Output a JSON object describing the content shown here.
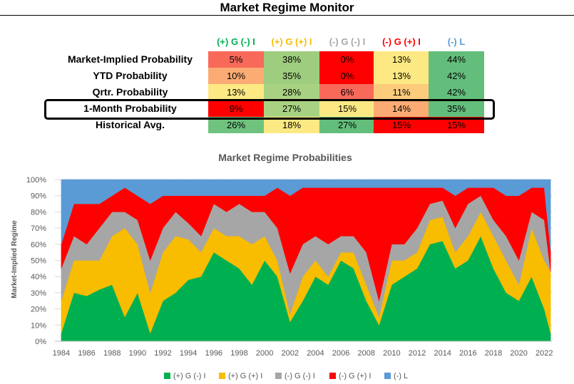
{
  "title": "Market Regime Monitor",
  "table": {
    "columns": [
      {
        "label": "(+) G (-) I",
        "color": "#00b050"
      },
      {
        "label": "(+) G (+) I",
        "color": "#f8bc00"
      },
      {
        "label": "(-) G (-) I",
        "color": "#a6a6a6"
      },
      {
        "label": "(-) G (+) I",
        "color": "#ff0000"
      },
      {
        "label": "(-) L",
        "color": "#5b9bd5"
      }
    ],
    "rows": [
      {
        "label": "Market-Implied Probability",
        "values": [
          "5%",
          "38%",
          "0%",
          "13%",
          "44%"
        ],
        "colors": [
          "#f8695a",
          "#9fcd7f",
          "#ff0000",
          "#fde983",
          "#63be7b"
        ]
      },
      {
        "label": "YTD Probability",
        "values": [
          "10%",
          "35%",
          "0%",
          "13%",
          "42%"
        ],
        "colors": [
          "#fbab73",
          "#9fcd7f",
          "#ff0000",
          "#fde983",
          "#63be7b"
        ]
      },
      {
        "label": "Qrtr. Probability",
        "values": [
          "13%",
          "28%",
          "6%",
          "11%",
          "42%"
        ],
        "colors": [
          "#fde983",
          "#a8d282",
          "#f8695a",
          "#fccc7c",
          "#63be7b"
        ]
      },
      {
        "label": "1-Month Probability",
        "values": [
          "9%",
          "27%",
          "15%",
          "14%",
          "35%"
        ],
        "colors": [
          "#ff0000",
          "#a8d282",
          "#fde983",
          "#fbab73",
          "#63be7b"
        ]
      },
      {
        "label": "Historical Avg.",
        "values": [
          "26%",
          "18%",
          "27%",
          "15%",
          "15%"
        ],
        "colors": [
          "#6fc37f",
          "#fde983",
          "#63be7b",
          "#ff0000",
          "#ff0000"
        ]
      }
    ]
  },
  "chart_data": {
    "type": "area",
    "title": "Market Regime Probabilities",
    "xlabel": "",
    "ylabel": "Market-Implied Regime",
    "ylim": [
      0,
      100
    ],
    "yticks": [
      "0%",
      "10%",
      "20%",
      "30%",
      "40%",
      "50%",
      "60%",
      "70%",
      "80%",
      "90%",
      "100%"
    ],
    "xticks": [
      "1984",
      "1986",
      "1988",
      "1990",
      "1992",
      "1994",
      "1996",
      "1998",
      "2000",
      "2002",
      "2004",
      "2006",
      "2008",
      "2010",
      "2012",
      "2014",
      "2016",
      "2018",
      "2020",
      "2022"
    ],
    "grid": true,
    "legend_position": "bottom",
    "stacked": true,
    "x": [
      1984.0,
      1985.0,
      1986.0,
      1987.0,
      1988.0,
      1989.0,
      1990.0,
      1991.0,
      1992.0,
      1993.0,
      1994.0,
      1995.0,
      1996.0,
      1997.0,
      1998.0,
      1999.0,
      2000.0,
      2001.0,
      2002.0,
      2003.0,
      2004.0,
      2005.0,
      2006.0,
      2007.0,
      2008.0,
      2009.0,
      2010.0,
      2011.0,
      2012.0,
      2013.0,
      2014.0,
      2015.0,
      2016.0,
      2017.0,
      2018.0,
      2019.0,
      2020.0,
      2021.0,
      2022.0,
      2022.5
    ],
    "series": [
      {
        "name": "(+) G (-) I",
        "color": "#00b050",
        "values": [
          5,
          30,
          28,
          32,
          35,
          15,
          30,
          5,
          25,
          30,
          38,
          40,
          55,
          50,
          45,
          35,
          50,
          40,
          12,
          25,
          40,
          35,
          50,
          45,
          25,
          10,
          35,
          40,
          45,
          60,
          62,
          45,
          50,
          65,
          45,
          30,
          25,
          40,
          20,
          5
        ]
      },
      {
        "name": "(+) G (+) I",
        "color": "#f8bc00",
        "values": [
          20,
          20,
          22,
          18,
          30,
          55,
          30,
          25,
          30,
          35,
          25,
          15,
          15,
          15,
          20,
          25,
          15,
          10,
          5,
          15,
          10,
          5,
          5,
          10,
          10,
          5,
          15,
          10,
          10,
          15,
          15,
          10,
          15,
          15,
          20,
          20,
          10,
          30,
          30,
          38
        ]
      },
      {
        "name": "(-) G (-) I",
        "color": "#a6a6a6",
        "values": [
          20,
          15,
          10,
          20,
          15,
          10,
          15,
          20,
          15,
          15,
          10,
          10,
          15,
          15,
          20,
          20,
          15,
          20,
          25,
          20,
          15,
          20,
          10,
          10,
          20,
          10,
          10,
          10,
          15,
          10,
          10,
          15,
          20,
          10,
          10,
          15,
          15,
          10,
          25,
          0
        ]
      },
      {
        "name": "(-) G (+) I",
        "color": "#ff0000",
        "values": [
          15,
          20,
          25,
          15,
          10,
          15,
          15,
          35,
          20,
          10,
          17,
          25,
          5,
          10,
          5,
          10,
          10,
          25,
          48,
          35,
          30,
          35,
          30,
          30,
          40,
          70,
          35,
          35,
          25,
          10,
          8,
          20,
          10,
          5,
          20,
          25,
          40,
          15,
          20,
          13
        ]
      },
      {
        "name": "(-) L",
        "color": "#5b9bd5",
        "values": [
          40,
          15,
          15,
          15,
          10,
          5,
          10,
          15,
          10,
          10,
          10,
          10,
          10,
          10,
          10,
          10,
          10,
          5,
          10,
          5,
          5,
          5,
          5,
          5,
          5,
          5,
          5,
          5,
          5,
          5,
          5,
          10,
          5,
          5,
          5,
          10,
          10,
          5,
          5,
          44
        ]
      }
    ]
  }
}
